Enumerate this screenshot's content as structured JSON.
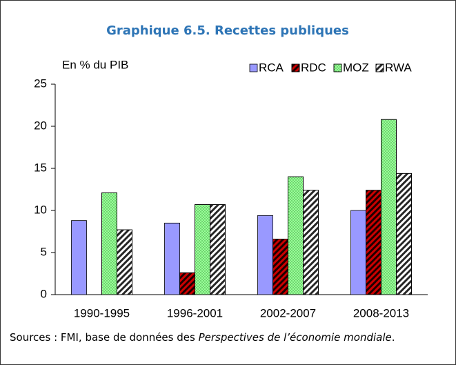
{
  "chart_data": {
    "type": "bar",
    "title": "Graphique 6.5. Recettes publiques",
    "y_label": "En % du PIB",
    "categories": [
      "1990-1995",
      "1996-2001",
      "2002-2007",
      "2008-2013"
    ],
    "series": [
      {
        "name": "RCA",
        "color": "#9999ff",
        "pattern": "solid",
        "values": [
          8.8,
          8.5,
          9.4,
          10.0
        ]
      },
      {
        "name": "RDC",
        "color": "#cc0000",
        "pattern": "hatch",
        "values": [
          null,
          2.6,
          6.6,
          12.4
        ]
      },
      {
        "name": "MOZ",
        "color": "#99ff99",
        "pattern": "dots",
        "values": [
          12.1,
          10.7,
          14.0,
          20.8
        ]
      },
      {
        "name": "RWA",
        "color": "#ffffff",
        "pattern": "hatch",
        "values": [
          7.7,
          10.7,
          12.4,
          14.4
        ]
      }
    ],
    "ylim": [
      0,
      25
    ],
    "yticks": [
      0,
      5,
      10,
      15,
      20,
      25
    ],
    "grid": false,
    "legend": "top-right",
    "source_prefix": "Sources : FMI, base de données des ",
    "source_italic": "Perspectives de l’économie mondiale",
    "source_suffix": "."
  }
}
